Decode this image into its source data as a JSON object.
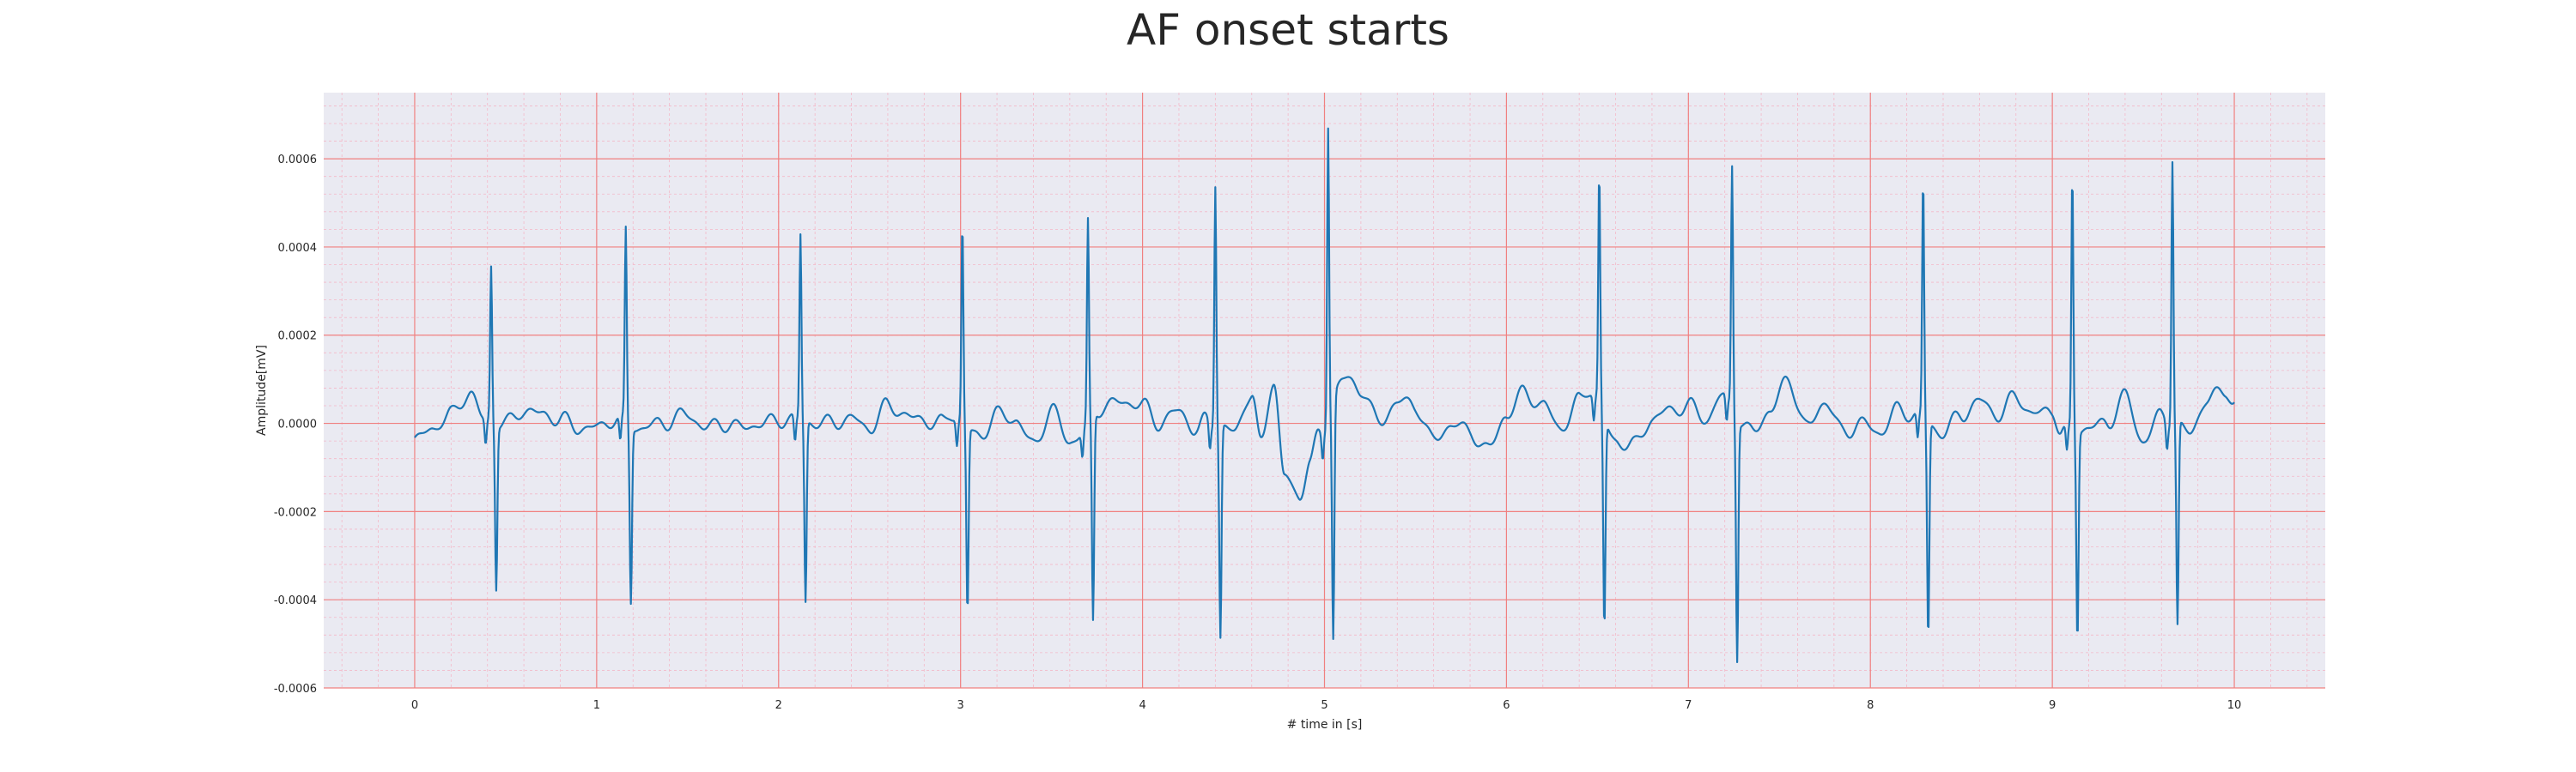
{
  "chart_data": {
    "type": "line",
    "title": "AF onset starts",
    "xlabel": "# time in [s]",
    "ylabel": "Amplitude[mV]",
    "xlim": [
      -0.5,
      10.5
    ],
    "ylim": [
      -0.0006,
      0.00075
    ],
    "grid": true,
    "x_ticks": [
      0,
      1,
      2,
      3,
      4,
      5,
      6,
      7,
      8,
      9,
      10
    ],
    "x_tick_labels": [
      "0",
      "1",
      "2",
      "3",
      "4",
      "5",
      "6",
      "7",
      "8",
      "9",
      "10"
    ],
    "y_ticks": [
      -0.0006,
      -0.0004,
      -0.0002,
      0.0,
      0.0002,
      0.0004,
      0.0006
    ],
    "y_tick_labels": [
      "-0.0006",
      "-0.0004",
      "-0.0002",
      "0.0000",
      "0.0002",
      "0.0004",
      "0.0006"
    ],
    "colors": {
      "line": "#1f77b4",
      "plot_bg": "#eaeaf2",
      "major_grid": "#f08080",
      "minor_grid": "#f4b8c8"
    },
    "beats": [
      {
        "t": 0.42,
        "peak": 0.00035,
        "trough": -0.00037
      },
      {
        "t": 1.16,
        "peak": 0.00043,
        "trough": -0.0004
      },
      {
        "t": 2.12,
        "peak": 0.00042,
        "trough": -0.00041
      },
      {
        "t": 3.01,
        "peak": 0.00045,
        "trough": -0.00042
      },
      {
        "t": 3.7,
        "peak": 0.00045,
        "trough": -0.00047
      },
      {
        "t": 4.4,
        "peak": 0.00055,
        "trough": -0.00048
      },
      {
        "t": 5.02,
        "peak": 0.00067,
        "trough": -0.00054
      },
      {
        "t": 6.51,
        "peak": 0.00052,
        "trough": -0.00048
      },
      {
        "t": 7.24,
        "peak": 0.00055,
        "trough": -0.00054
      },
      {
        "t": 8.29,
        "peak": 0.00054,
        "trough": -0.00049
      },
      {
        "t": 9.11,
        "peak": 0.00058,
        "trough": -0.00047
      },
      {
        "t": 9.66,
        "peak": 0.0006,
        "trough": -0.00046
      }
    ],
    "baseline": [
      [
        0.0,
        -4e-05
      ],
      [
        0.1,
        -1e-05
      ],
      [
        0.2,
        2e-05
      ],
      [
        0.3,
        7e-05
      ],
      [
        0.38,
        1e-05
      ],
      [
        0.5,
        0.0
      ],
      [
        0.6,
        3e-05
      ],
      [
        0.7,
        2e-05
      ],
      [
        0.8,
        1e-05
      ],
      [
        0.9,
        -1e-05
      ],
      [
        1.0,
        -1e-05
      ],
      [
        1.1,
        1e-05
      ],
      [
        1.25,
        -1e-05
      ],
      [
        1.35,
        0.0
      ],
      [
        1.5,
        2e-05
      ],
      [
        1.6,
        -1e-05
      ],
      [
        1.7,
        0.0
      ],
      [
        1.8,
        -1e-05
      ],
      [
        1.9,
        0.0
      ],
      [
        2.05,
        1e-05
      ],
      [
        2.25,
        0.0
      ],
      [
        2.4,
        1e-05
      ],
      [
        2.5,
        -1e-05
      ],
      [
        2.6,
        4e-05
      ],
      [
        2.75,
        1e-05
      ],
      [
        2.9,
        0.0
      ],
      [
        2.95,
        2e-05
      ],
      [
        3.1,
        -3e-05
      ],
      [
        3.2,
        2e-05
      ],
      [
        3.3,
        1e-05
      ],
      [
        3.4,
        -5e-05
      ],
      [
        3.5,
        3e-05
      ],
      [
        3.6,
        -4e-05
      ],
      [
        3.8,
        4e-05
      ],
      [
        3.9,
        5e-05
      ],
      [
        4.0,
        4e-05
      ],
      [
        4.1,
        0.0
      ],
      [
        4.2,
        3e-05
      ],
      [
        4.3,
        -2e-05
      ],
      [
        4.35,
        1e-05
      ],
      [
        4.5,
        -2e-05
      ],
      [
        4.6,
        7e-05
      ],
      [
        4.65,
        -5e-05
      ],
      [
        4.72,
        0.0001
      ],
      [
        4.78,
        -0.00012
      ],
      [
        4.86,
        -0.00017
      ],
      [
        4.92,
        -8e-05
      ],
      [
        4.97,
        -3e-05
      ],
      [
        5.1,
        0.0001
      ],
      [
        5.2,
        8e-05
      ],
      [
        5.3,
        0.0
      ],
      [
        5.4,
        5e-05
      ],
      [
        5.5,
        4e-05
      ],
      [
        5.6,
        -4e-05
      ],
      [
        5.7,
        0.0
      ],
      [
        5.8,
        -2e-05
      ],
      [
        5.9,
        -6e-05
      ],
      [
        6.0,
        2e-05
      ],
      [
        6.1,
        7e-05
      ],
      [
        6.2,
        4e-05
      ],
      [
        6.3,
        -1e-05
      ],
      [
        6.4,
        5e-05
      ],
      [
        6.46,
        8e-05
      ],
      [
        6.6,
        -4e-05
      ],
      [
        6.7,
        -5e-05
      ],
      [
        6.8,
        1e-05
      ],
      [
        6.9,
        3e-05
      ],
      [
        7.0,
        4e-05
      ],
      [
        7.1,
        1e-05
      ],
      [
        7.18,
        6e-05
      ],
      [
        7.35,
        -2e-05
      ],
      [
        7.45,
        3e-05
      ],
      [
        7.55,
        0.0001
      ],
      [
        7.65,
        -1e-05
      ],
      [
        7.75,
        5e-05
      ],
      [
        7.85,
        -2e-05
      ],
      [
        7.95,
        0.0
      ],
      [
        8.05,
        -2e-05
      ],
      [
        8.15,
        3e-05
      ],
      [
        8.24,
        2e-05
      ],
      [
        8.4,
        -2e-05
      ],
      [
        8.5,
        2e-05
      ],
      [
        8.6,
        5e-05
      ],
      [
        8.7,
        2e-05
      ],
      [
        8.8,
        6e-05
      ],
      [
        8.9,
        2e-05
      ],
      [
        9.0,
        3e-05
      ],
      [
        9.05,
        -2e-05
      ],
      [
        9.2,
        -1e-05
      ],
      [
        9.3,
        0.0
      ],
      [
        9.4,
        6e-05
      ],
      [
        9.5,
        -4e-05
      ],
      [
        9.6,
        2e-05
      ],
      [
        9.75,
        -2e-05
      ],
      [
        9.85,
        5e-05
      ],
      [
        9.95,
        8e-05
      ],
      [
        10.0,
        4e-05
      ]
    ]
  }
}
